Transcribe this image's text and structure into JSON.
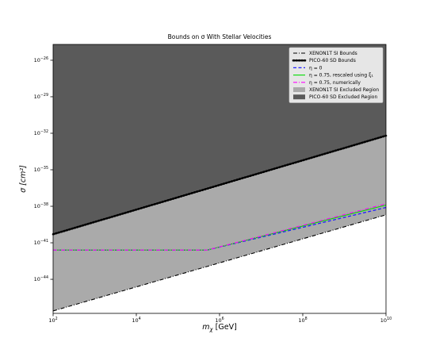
{
  "chart_data": {
    "type": "line",
    "title": "Bounds on σ With Stellar Velocities",
    "xlabel": "m_χ [GeV]",
    "ylabel": "σ [cm²]",
    "x_scale": "log",
    "y_scale": "log",
    "xlim_log10": [
      2,
      10
    ],
    "ylim_log10": [
      -46.8,
      -24.7
    ],
    "x_ticks": [
      {
        "base": "10",
        "exp": "2",
        "log10": 2
      },
      {
        "base": "10",
        "exp": "4",
        "log10": 4
      },
      {
        "base": "10",
        "exp": "6",
        "log10": 6
      },
      {
        "base": "10",
        "exp": "8",
        "log10": 8
      },
      {
        "base": "10",
        "exp": "10",
        "log10": 10
      }
    ],
    "y_ticks": [
      {
        "base": "10",
        "exp": "−44",
        "log10": -44
      },
      {
        "base": "10",
        "exp": "−41",
        "log10": -41
      },
      {
        "base": "10",
        "exp": "−38",
        "log10": -38
      },
      {
        "base": "10",
        "exp": "−35",
        "log10": -35
      },
      {
        "base": "10",
        "exp": "−32",
        "log10": -32
      },
      {
        "base": "10",
        "exp": "−29",
        "log10": -29
      },
      {
        "base": "10",
        "exp": "−26",
        "log10": -26
      }
    ],
    "grid": false,
    "legend_position": "top-right",
    "series": [
      {
        "name": "XENON1T SI Bounds",
        "style": "dashdot",
        "color": "#000000",
        "x_log10": [
          2,
          10
        ],
        "y_log10": [
          -46.6,
          -38.7
        ]
      },
      {
        "name": "PICO-60 SD Bounds",
        "style": "dotted",
        "color": "#000000",
        "x_log10": [
          2,
          10
        ],
        "y_log10": [
          -40.3,
          -32.2
        ]
      },
      {
        "name": "η = 0",
        "style": "dashed",
        "color": "#1f1fff",
        "x_log10": [
          2,
          5.7,
          10
        ],
        "y_log10": [
          -41.6,
          -41.6,
          -38.1
        ]
      },
      {
        "name": "η = 0.75, rescaled using ξ₁",
        "style": "solid",
        "color": "#00dd00",
        "x_log10": [
          2,
          5.7,
          10
        ],
        "y_log10": [
          -41.6,
          -41.6,
          -37.9
        ]
      },
      {
        "name": "η = 0.75, numerically",
        "style": "dashdot",
        "color": "#ff00ff",
        "x_log10": [
          2,
          5.7,
          10
        ],
        "y_log10": [
          -41.6,
          -41.6,
          -37.8
        ]
      }
    ],
    "regions": [
      {
        "name": "XENON1T SI Excluded Region",
        "color": "#aaaaaa"
      },
      {
        "name": "PICO-60 SD Excluded Region",
        "color": "#5a5a5a"
      }
    ]
  }
}
